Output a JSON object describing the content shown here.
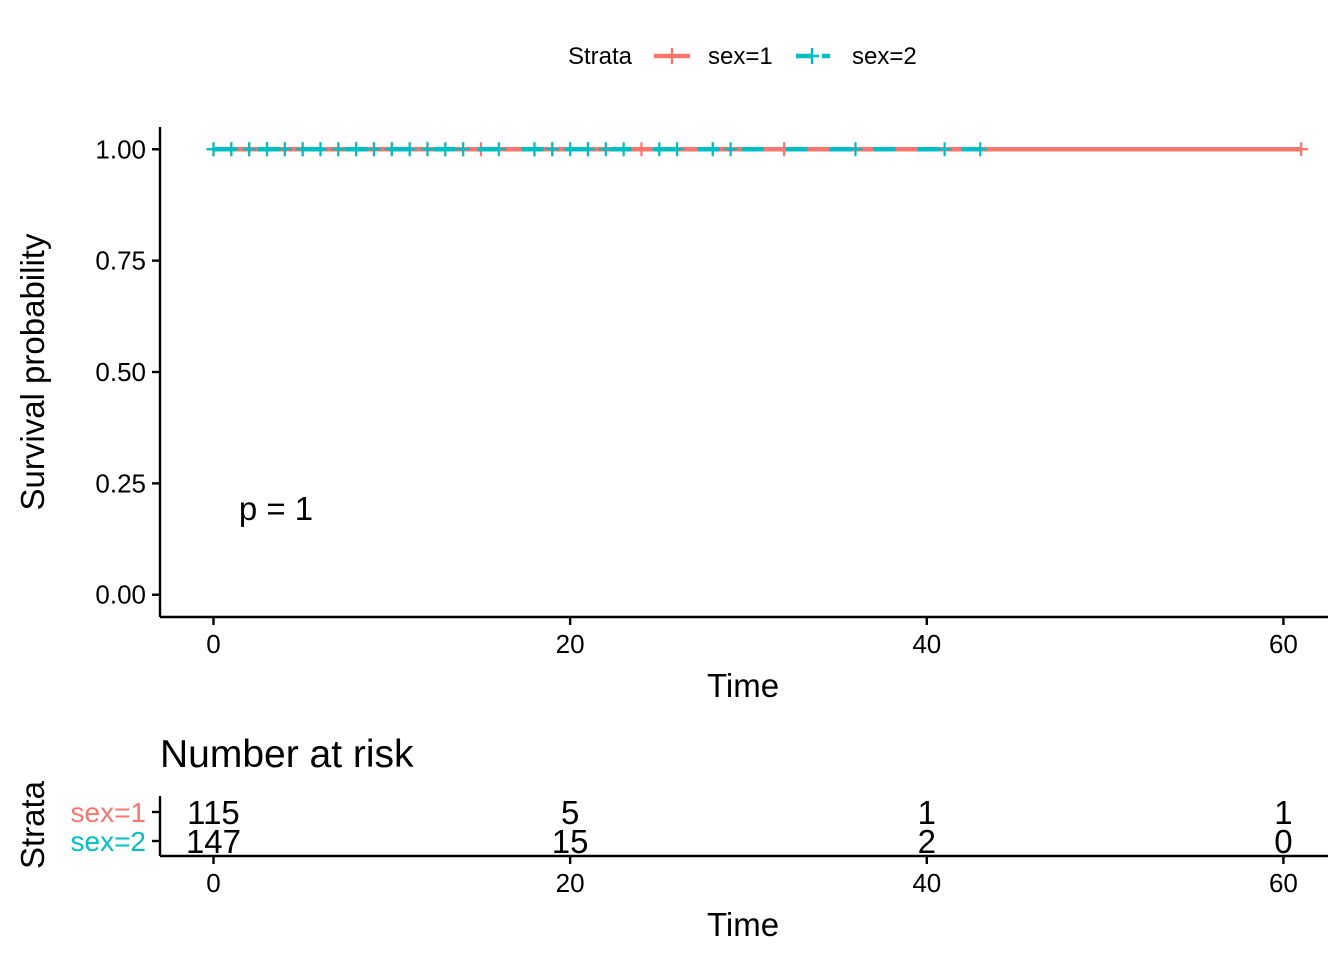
{
  "chart_data": [
    {
      "type": "line",
      "subtype": "kaplan-meier-step",
      "xlabel": "Time",
      "ylabel": "Survival probability",
      "xlim": [
        -3,
        62.5
      ],
      "ylim": [
        -0.05,
        1.05
      ],
      "xticks": [
        0,
        20,
        40,
        60
      ],
      "xtick_labels": [
        "0",
        "20",
        "40",
        "60"
      ],
      "yticks": [
        0,
        0.25,
        0.5,
        0.75,
        1.0
      ],
      "ytick_labels": [
        "0.00",
        "0.25",
        "0.50",
        "0.75",
        "1.00"
      ],
      "grid": false,
      "legend": {
        "title": "Strata",
        "position": "top"
      },
      "annotation": "p = 1",
      "annotation_at": {
        "x": 1.3,
        "y": 0.2
      },
      "series": [
        {
          "name": "sex=1",
          "color": "#F8766D",
          "line_style": "solid",
          "x": [
            0,
            61
          ],
          "y": [
            1.0,
            1.0
          ],
          "censor_times": [
            0,
            1,
            2,
            3,
            4,
            5,
            6,
            7,
            8,
            9,
            10,
            11,
            12,
            13,
            14,
            15,
            18,
            19,
            21,
            24,
            28,
            32,
            61
          ]
        },
        {
          "name": "sex=2",
          "color": "#00BFC4",
          "line_style": "dashed",
          "x": [
            0,
            43
          ],
          "y": [
            1.0,
            1.0
          ],
          "censor_times": [
            0,
            1,
            2,
            3,
            4,
            5,
            6,
            7,
            8,
            9,
            10,
            11,
            12,
            13,
            14,
            16,
            18,
            19,
            20,
            21,
            22,
            23,
            25,
            26,
            28,
            29,
            36,
            41,
            43
          ]
        }
      ]
    },
    {
      "type": "table",
      "title": "Number at risk",
      "xlabel": "Time",
      "ylabel": "Strata",
      "xlim": [
        -3,
        62.5
      ],
      "xticks": [
        0,
        20,
        40,
        60
      ],
      "xtick_labels": [
        "0",
        "20",
        "40",
        "60"
      ],
      "rows": [
        {
          "label": "sex=1",
          "color": "#F8766D",
          "values": [
            "115",
            "5",
            "1",
            "1"
          ]
        },
        {
          "label": "sex=2",
          "color": "#00BFC4",
          "values": [
            "147",
            "15",
            "2",
            "0"
          ]
        }
      ]
    }
  ]
}
